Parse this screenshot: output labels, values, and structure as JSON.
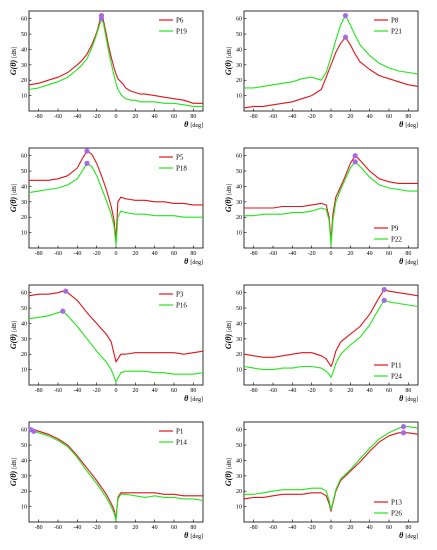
{
  "figure": {
    "ylabel_main": "G(θ)",
    "ylabel_unit": "[dB]",
    "xlabel_main": "θ",
    "xlabel_unit": "[deg]",
    "x_ticks": [
      "-80",
      "-60",
      "-40",
      "-20",
      "0",
      "20",
      "40",
      "60",
      "80"
    ],
    "y_ticks": [
      "10",
      "20",
      "30",
      "40",
      "50",
      "60"
    ]
  },
  "colors": {
    "red": "#e0141b",
    "green": "#22e51a",
    "peak": "#a66be0"
  },
  "chart_data": [
    {
      "type": "line",
      "legend": "top-right",
      "xlim": [
        -90,
        90
      ],
      "ylim": [
        0,
        65
      ],
      "grid": false,
      "series": [
        {
          "name": "P6",
          "color": "red",
          "x": [
            -90,
            -80,
            -70,
            -60,
            -50,
            -40,
            -35,
            -30,
            -25,
            -20,
            -17,
            -15,
            -13,
            -10,
            -8,
            -5,
            -2,
            0,
            2,
            5,
            8,
            10,
            15,
            20,
            25,
            30,
            40,
            50,
            60,
            70,
            80,
            90
          ],
          "y": [
            17,
            18,
            20,
            22,
            25,
            30,
            33,
            37,
            43,
            51,
            58,
            62,
            59,
            50,
            43,
            35,
            28,
            24,
            21,
            19,
            17,
            15,
            13,
            12,
            11,
            11,
            10,
            9,
            8,
            7,
            5,
            5
          ],
          "peak": [
            -15,
            62
          ]
        },
        {
          "name": "P19",
          "color": "green",
          "x": [
            -90,
            -80,
            -70,
            -60,
            -50,
            -40,
            -35,
            -30,
            -25,
            -20,
            -17,
            -15,
            -13,
            -10,
            -8,
            -5,
            -2,
            0,
            2,
            5,
            8,
            10,
            15,
            20,
            25,
            30,
            40,
            50,
            60,
            70,
            80,
            90
          ],
          "y": [
            14,
            15,
            17,
            19,
            22,
            27,
            30,
            34,
            41,
            50,
            56,
            60,
            57,
            47,
            40,
            31,
            23,
            18,
            14,
            11,
            9,
            8,
            7,
            7,
            6,
            6,
            6,
            5,
            5,
            4,
            3,
            3
          ],
          "peak": [
            -15,
            60
          ]
        }
      ]
    },
    {
      "type": "line",
      "legend": "top-right",
      "xlim": [
        -90,
        90
      ],
      "ylim": [
        0,
        65
      ],
      "grid": false,
      "series": [
        {
          "name": "P8",
          "color": "red",
          "x": [
            -90,
            -80,
            -70,
            -60,
            -50,
            -40,
            -30,
            -20,
            -15,
            -10,
            -5,
            0,
            5,
            10,
            15,
            20,
            25,
            30,
            40,
            50,
            60,
            70,
            80,
            90
          ],
          "y": [
            2,
            3,
            3,
            4,
            5,
            6,
            8,
            10,
            12,
            14,
            22,
            30,
            38,
            44,
            48,
            43,
            37,
            32,
            27,
            23,
            21,
            19,
            17,
            16
          ],
          "peak": [
            15,
            48
          ]
        },
        {
          "name": "P21",
          "color": "green",
          "x": [
            -90,
            -80,
            -70,
            -60,
            -50,
            -40,
            -30,
            -20,
            -15,
            -10,
            -5,
            0,
            5,
            10,
            15,
            20,
            25,
            30,
            40,
            50,
            60,
            70,
            80,
            90
          ],
          "y": [
            15,
            15,
            16,
            17,
            18,
            19,
            21,
            22,
            21,
            20,
            25,
            35,
            46,
            56,
            62,
            56,
            49,
            43,
            36,
            31,
            28,
            26,
            25,
            24
          ],
          "peak": [
            15,
            62
          ]
        }
      ]
    },
    {
      "type": "line",
      "legend": "top-right",
      "xlim": [
        -90,
        90
      ],
      "ylim": [
        0,
        65
      ],
      "grid": false,
      "series": [
        {
          "name": "P5",
          "color": "red",
          "x": [
            -90,
            -80,
            -70,
            -60,
            -50,
            -40,
            -35,
            -30,
            -25,
            -20,
            -15,
            -10,
            -5,
            -2,
            0,
            2,
            5,
            10,
            20,
            30,
            40,
            50,
            60,
            70,
            80,
            90
          ],
          "y": [
            44,
            44,
            44,
            45,
            47,
            52,
            58,
            63,
            61,
            55,
            47,
            38,
            27,
            18,
            5,
            30,
            33,
            32,
            31,
            31,
            30,
            30,
            29,
            29,
            28,
            28
          ],
          "peak": [
            -30,
            63
          ]
        },
        {
          "name": "P18",
          "color": "green",
          "x": [
            -90,
            -80,
            -70,
            -60,
            -50,
            -40,
            -35,
            -30,
            -25,
            -20,
            -15,
            -10,
            -5,
            -2,
            0,
            2,
            5,
            10,
            20,
            30,
            40,
            50,
            60,
            70,
            80,
            90
          ],
          "y": [
            36,
            37,
            38,
            39,
            41,
            45,
            50,
            55,
            53,
            47,
            39,
            31,
            22,
            14,
            2,
            20,
            24,
            23,
            22,
            22,
            21,
            21,
            21,
            20,
            20,
            20
          ],
          "peak": [
            -30,
            55
          ]
        }
      ]
    },
    {
      "type": "line",
      "legend": "bottom-right",
      "xlim": [
        -90,
        90
      ],
      "ylim": [
        0,
        65
      ],
      "grid": false,
      "series": [
        {
          "name": "P9",
          "color": "red",
          "x": [
            -90,
            -80,
            -70,
            -60,
            -50,
            -40,
            -30,
            -20,
            -10,
            -5,
            -2,
            0,
            2,
            5,
            10,
            15,
            20,
            25,
            30,
            40,
            50,
            60,
            70,
            80,
            90
          ],
          "y": [
            26,
            26,
            26,
            26,
            27,
            27,
            27,
            28,
            29,
            28,
            20,
            5,
            22,
            33,
            40,
            47,
            55,
            60,
            57,
            50,
            45,
            43,
            42,
            42,
            42
          ],
          "peak": [
            25,
            60
          ]
        },
        {
          "name": "P22",
          "color": "green",
          "x": [
            -90,
            -80,
            -70,
            -60,
            -50,
            -40,
            -30,
            -20,
            -10,
            -5,
            -2,
            0,
            2,
            5,
            10,
            15,
            20,
            25,
            30,
            40,
            50,
            60,
            70,
            80,
            90
          ],
          "y": [
            21,
            21,
            22,
            22,
            22,
            23,
            23,
            24,
            26,
            25,
            18,
            2,
            18,
            30,
            38,
            45,
            52,
            56,
            53,
            46,
            41,
            39,
            38,
            37,
            37
          ],
          "peak": [
            25,
            56
          ]
        }
      ]
    },
    {
      "type": "line",
      "legend": "top-right",
      "xlim": [
        -90,
        90
      ],
      "ylim": [
        0,
        65
      ],
      "grid": false,
      "series": [
        {
          "name": "P3",
          "color": "red",
          "x": [
            -90,
            -80,
            -70,
            -60,
            -55,
            -50,
            -40,
            -30,
            -20,
            -10,
            -5,
            0,
            5,
            10,
            20,
            30,
            40,
            50,
            60,
            70,
            80,
            90
          ],
          "y": [
            58,
            59,
            59,
            60,
            61,
            60,
            55,
            47,
            40,
            33,
            28,
            15,
            20,
            20,
            21,
            21,
            21,
            21,
            21,
            20,
            21,
            22
          ],
          "peak": [
            -52,
            61
          ]
        },
        {
          "name": "P16",
          "color": "green",
          "x": [
            -90,
            -80,
            -70,
            -60,
            -55,
            -50,
            -40,
            -30,
            -20,
            -10,
            -5,
            0,
            5,
            10,
            20,
            30,
            40,
            50,
            60,
            70,
            80,
            90
          ],
          "y": [
            43,
            44,
            45,
            47,
            48,
            45,
            38,
            30,
            22,
            15,
            10,
            2,
            8,
            9,
            9,
            9,
            8,
            8,
            7,
            7,
            7,
            8
          ],
          "peak": [
            -55,
            48
          ]
        }
      ]
    },
    {
      "type": "line",
      "legend": "bottom-right",
      "xlim": [
        -90,
        90
      ],
      "ylim": [
        0,
        65
      ],
      "grid": false,
      "series": [
        {
          "name": "P11",
          "color": "red",
          "x": [
            -90,
            -80,
            -70,
            -60,
            -50,
            -40,
            -30,
            -20,
            -10,
            -5,
            -2,
            0,
            2,
            5,
            10,
            20,
            30,
            40,
            50,
            55,
            60,
            70,
            80,
            90
          ],
          "y": [
            20,
            19,
            18,
            18,
            19,
            20,
            21,
            21,
            19,
            17,
            14,
            12,
            15,
            22,
            28,
            33,
            38,
            46,
            57,
            62,
            61,
            60,
            59,
            58
          ],
          "peak": [
            55,
            62
          ]
        },
        {
          "name": "P24",
          "color": "green",
          "x": [
            -90,
            -80,
            -70,
            -60,
            -50,
            -40,
            -30,
            -20,
            -10,
            -5,
            -2,
            0,
            2,
            5,
            10,
            20,
            30,
            40,
            50,
            55,
            60,
            70,
            80,
            90
          ],
          "y": [
            12,
            11,
            10,
            10,
            11,
            11,
            12,
            12,
            11,
            9,
            7,
            5,
            8,
            14,
            20,
            26,
            31,
            39,
            50,
            55,
            54,
            53,
            52,
            51
          ],
          "peak": [
            55,
            55
          ]
        }
      ]
    },
    {
      "type": "line",
      "legend": "top-right",
      "xlim": [
        -90,
        90
      ],
      "ylim": [
        0,
        65
      ],
      "grid": false,
      "series": [
        {
          "name": "P1",
          "color": "red",
          "x": [
            -90,
            -85,
            -80,
            -70,
            -60,
            -50,
            -40,
            -30,
            -20,
            -10,
            -5,
            -2,
            0,
            2,
            5,
            10,
            20,
            30,
            40,
            50,
            60,
            70,
            80,
            90
          ],
          "y": [
            60,
            60,
            59,
            57,
            54,
            50,
            43,
            35,
            27,
            18,
            12,
            8,
            2,
            16,
            19,
            19,
            19,
            19,
            19,
            18,
            18,
            17,
            17,
            17
          ],
          "peak": [
            -88,
            60
          ]
        },
        {
          "name": "P14",
          "color": "green",
          "x": [
            -90,
            -85,
            -80,
            -70,
            -60,
            -50,
            -40,
            -30,
            -20,
            -10,
            -5,
            -2,
            0,
            2,
            5,
            10,
            20,
            30,
            40,
            50,
            60,
            70,
            80,
            90
          ],
          "y": [
            59,
            59,
            58,
            56,
            53,
            49,
            42,
            33,
            25,
            16,
            10,
            6,
            1,
            15,
            18,
            18,
            17,
            16,
            17,
            16,
            16,
            15,
            15,
            14
          ],
          "peak": [
            -85,
            59
          ]
        }
      ]
    },
    {
      "type": "line",
      "legend": "bottom-right",
      "xlim": [
        -90,
        90
      ],
      "ylim": [
        0,
        65
      ],
      "grid": false,
      "series": [
        {
          "name": "P13",
          "color": "red",
          "x": [
            -90,
            -80,
            -70,
            -60,
            -50,
            -40,
            -30,
            -20,
            -10,
            -5,
            -2,
            0,
            2,
            5,
            10,
            20,
            30,
            40,
            50,
            60,
            70,
            75,
            80,
            90
          ],
          "y": [
            15,
            16,
            16,
            17,
            18,
            18,
            18,
            19,
            19,
            17,
            12,
            7,
            12,
            20,
            27,
            33,
            39,
            46,
            52,
            56,
            58,
            58,
            58,
            57
          ],
          "peak": [
            75,
            58
          ]
        },
        {
          "name": "P26",
          "color": "green",
          "x": [
            -90,
            -80,
            -70,
            -60,
            -50,
            -40,
            -30,
            -20,
            -10,
            -5,
            -2,
            0,
            2,
            5,
            10,
            20,
            30,
            40,
            50,
            60,
            70,
            75,
            80,
            90
          ],
          "y": [
            18,
            18,
            19,
            20,
            21,
            21,
            21,
            22,
            22,
            20,
            14,
            8,
            13,
            21,
            28,
            34,
            41,
            48,
            54,
            58,
            61,
            62,
            62,
            61
          ],
          "peak": [
            75,
            62
          ]
        }
      ]
    }
  ]
}
